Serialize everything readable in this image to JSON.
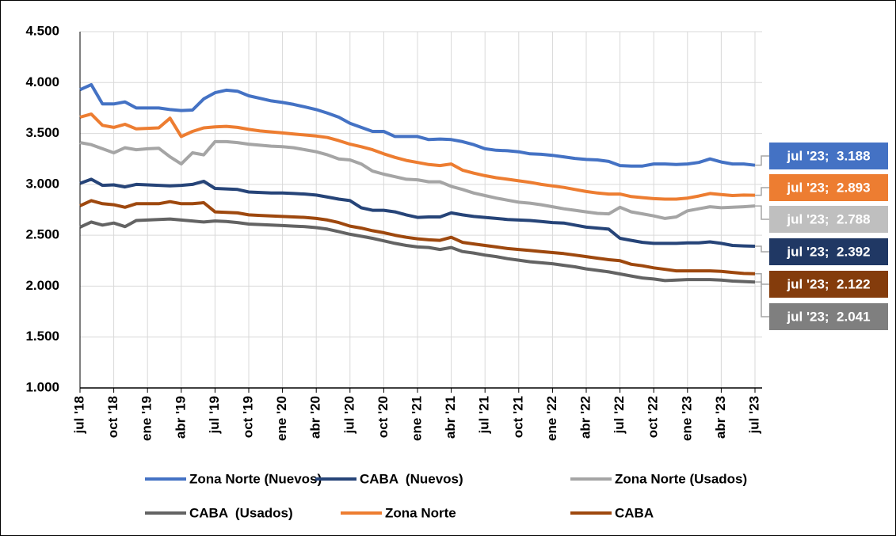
{
  "chart_data": {
    "type": "line",
    "categories": [
      "jul '18",
      null,
      null,
      "oct '18",
      null,
      null,
      "ene '19",
      null,
      null,
      "abr '19",
      null,
      null,
      "jul '19",
      null,
      null,
      "oct '19",
      null,
      null,
      "ene '20",
      null,
      null,
      "abr '20",
      null,
      null,
      "jul '20",
      null,
      null,
      "oct '20",
      null,
      null,
      "ene '21",
      null,
      null,
      "abr '21",
      null,
      null,
      "jul '21",
      null,
      null,
      "oct '21",
      null,
      null,
      "ene '22",
      null,
      null,
      "abr '22",
      null,
      null,
      "jul '22",
      null,
      null,
      "oct '22",
      null,
      null,
      "ene '23",
      null,
      null,
      "abr '23",
      null,
      null,
      "jul '23"
    ],
    "ylim": [
      1000,
      4500
    ],
    "yticks": [
      {
        "value": 1000,
        "label": "1.000"
      },
      {
        "value": 1500,
        "label": "1.500"
      },
      {
        "value": 2000,
        "label": "2.000"
      },
      {
        "value": 2500,
        "label": "2.500"
      },
      {
        "value": 3000,
        "label": "3.000"
      },
      {
        "value": 3500,
        "label": "3.500"
      },
      {
        "value": 4000,
        "label": "4.000"
      },
      {
        "value": 4500,
        "label": "4.500"
      }
    ],
    "grid": true,
    "legend": "bottom",
    "series": [
      {
        "name": "Zona Norte (Nuevos)",
        "color": "#4472c4",
        "label_color": "#4472c4",
        "values": [
          3930,
          3980,
          3790,
          3790,
          3810,
          3750,
          3750,
          3750,
          3735,
          3725,
          3730,
          3840,
          3900,
          3925,
          3915,
          3870,
          3845,
          3820,
          3805,
          3785,
          3760,
          3735,
          3700,
          3660,
          3600,
          3560,
          3520,
          3520,
          3470,
          3470,
          3470,
          3440,
          3445,
          3440,
          3420,
          3390,
          3350,
          3335,
          3330,
          3320,
          3300,
          3295,
          3285,
          3270,
          3255,
          3245,
          3240,
          3225,
          3185,
          3180,
          3180,
          3200,
          3200,
          3195,
          3200,
          3215,
          3250,
          3220,
          3200,
          3200,
          3188
        ],
        "value_labels": [
          null,
          null,
          null,
          null,
          null,
          null,
          null,
          null,
          null,
          null,
          null,
          null,
          null,
          null,
          null,
          null,
          null,
          null,
          null,
          null,
          null,
          null,
          null,
          null,
          null,
          null,
          null,
          null,
          null,
          null,
          null,
          null,
          null,
          null,
          null,
          null,
          null,
          null,
          null,
          null,
          null,
          null,
          null,
          null,
          null,
          null,
          null,
          null,
          null,
          null,
          null,
          null,
          null,
          null,
          null,
          null,
          null,
          null,
          null,
          null,
          "jul '23;  3.188"
        ]
      },
      {
        "name": "CABA  (Nuevos)",
        "color": "#264478",
        "label_color": "#203864",
        "values": [
          3010,
          3050,
          2990,
          2995,
          2975,
          3000,
          2995,
          2990,
          2985,
          2990,
          3000,
          3030,
          2960,
          2955,
          2950,
          2925,
          2920,
          2915,
          2915,
          2910,
          2905,
          2895,
          2875,
          2855,
          2840,
          2770,
          2745,
          2745,
          2730,
          2700,
          2675,
          2680,
          2680,
          2720,
          2700,
          2685,
          2675,
          2665,
          2655,
          2650,
          2645,
          2635,
          2625,
          2620,
          2600,
          2580,
          2570,
          2560,
          2470,
          2450,
          2430,
          2420,
          2420,
          2420,
          2425,
          2425,
          2435,
          2420,
          2400,
          2395,
          2392
        ],
        "value_labels": [
          null,
          null,
          null,
          null,
          null,
          null,
          null,
          null,
          null,
          null,
          null,
          null,
          null,
          null,
          null,
          null,
          null,
          null,
          null,
          null,
          null,
          null,
          null,
          null,
          null,
          null,
          null,
          null,
          null,
          null,
          null,
          null,
          null,
          null,
          null,
          null,
          null,
          null,
          null,
          null,
          null,
          null,
          null,
          null,
          null,
          null,
          null,
          null,
          null,
          null,
          null,
          null,
          null,
          null,
          null,
          null,
          null,
          null,
          null,
          null,
          "jul '23;  2.392"
        ]
      },
      {
        "name": "Zona Norte (Usados)",
        "color": "#a5a5a5",
        "label_color": "#bfbfbf",
        "values": [
          3410,
          3390,
          3350,
          3310,
          3360,
          3340,
          3350,
          3355,
          3270,
          3200,
          3310,
          3290,
          3420,
          3420,
          3410,
          3395,
          3385,
          3375,
          3370,
          3360,
          3340,
          3320,
          3290,
          3250,
          3240,
          3200,
          3130,
          3100,
          3075,
          3050,
          3045,
          3025,
          3025,
          2980,
          2950,
          2915,
          2890,
          2865,
          2845,
          2825,
          2815,
          2800,
          2780,
          2760,
          2745,
          2730,
          2715,
          2710,
          2775,
          2730,
          2710,
          2690,
          2665,
          2680,
          2740,
          2760,
          2780,
          2770,
          2775,
          2780,
          2788
        ],
        "value_labels": [
          null,
          null,
          null,
          null,
          null,
          null,
          null,
          null,
          null,
          null,
          null,
          null,
          null,
          null,
          null,
          null,
          null,
          null,
          null,
          null,
          null,
          null,
          null,
          null,
          null,
          null,
          null,
          null,
          null,
          null,
          null,
          null,
          null,
          null,
          null,
          null,
          null,
          null,
          null,
          null,
          null,
          null,
          null,
          null,
          null,
          null,
          null,
          null,
          null,
          null,
          null,
          null,
          null,
          null,
          null,
          null,
          null,
          null,
          null,
          null,
          "jul '23;  2.788"
        ]
      },
      {
        "name": "CABA  (Usados)",
        "color": "#636363",
        "label_color": "#7f7f7f",
        "values": [
          2580,
          2630,
          2600,
          2620,
          2585,
          2645,
          2650,
          2655,
          2660,
          2650,
          2640,
          2630,
          2640,
          2635,
          2625,
          2610,
          2605,
          2600,
          2595,
          2590,
          2585,
          2575,
          2560,
          2535,
          2510,
          2490,
          2470,
          2445,
          2420,
          2400,
          2385,
          2380,
          2360,
          2380,
          2340,
          2325,
          2305,
          2290,
          2270,
          2255,
          2240,
          2230,
          2220,
          2205,
          2190,
          2170,
          2155,
          2140,
          2120,
          2100,
          2080,
          2070,
          2055,
          2060,
          2065,
          2065,
          2065,
          2060,
          2050,
          2045,
          2041
        ],
        "value_labels": [
          null,
          null,
          null,
          null,
          null,
          null,
          null,
          null,
          null,
          null,
          null,
          null,
          null,
          null,
          null,
          null,
          null,
          null,
          null,
          null,
          null,
          null,
          null,
          null,
          null,
          null,
          null,
          null,
          null,
          null,
          null,
          null,
          null,
          null,
          null,
          null,
          null,
          null,
          null,
          null,
          null,
          null,
          null,
          null,
          null,
          null,
          null,
          null,
          null,
          null,
          null,
          null,
          null,
          null,
          null,
          null,
          null,
          null,
          null,
          null,
          "jul '23;  2.041"
        ]
      },
      {
        "name": "Zona Norte",
        "color": "#ed7d31",
        "label_color": "#ed7d31",
        "values": [
          3660,
          3690,
          3580,
          3560,
          3590,
          3545,
          3550,
          3555,
          3650,
          3470,
          3520,
          3555,
          3565,
          3570,
          3560,
          3540,
          3525,
          3515,
          3505,
          3495,
          3485,
          3475,
          3460,
          3430,
          3395,
          3370,
          3340,
          3300,
          3265,
          3235,
          3215,
          3195,
          3185,
          3200,
          3140,
          3110,
          3085,
          3065,
          3050,
          3035,
          3020,
          3000,
          2985,
          2970,
          2950,
          2930,
          2915,
          2905,
          2905,
          2880,
          2870,
          2860,
          2855,
          2855,
          2865,
          2885,
          2910,
          2900,
          2890,
          2895,
          2893
        ],
        "value_labels": [
          null,
          null,
          null,
          null,
          null,
          null,
          null,
          null,
          null,
          null,
          null,
          null,
          null,
          null,
          null,
          null,
          null,
          null,
          null,
          null,
          null,
          null,
          null,
          null,
          null,
          null,
          null,
          null,
          null,
          null,
          null,
          null,
          null,
          null,
          null,
          null,
          null,
          null,
          null,
          null,
          null,
          null,
          null,
          null,
          null,
          null,
          null,
          null,
          null,
          null,
          null,
          null,
          null,
          null,
          null,
          null,
          null,
          null,
          null,
          null,
          "jul '23;  2.893"
        ]
      },
      {
        "name": "CABA",
        "color": "#9e480e",
        "label_color": "#843c0c",
        "values": [
          2790,
          2840,
          2810,
          2800,
          2775,
          2810,
          2810,
          2810,
          2830,
          2810,
          2810,
          2820,
          2730,
          2725,
          2720,
          2700,
          2695,
          2690,
          2685,
          2680,
          2675,
          2665,
          2650,
          2625,
          2590,
          2570,
          2545,
          2525,
          2500,
          2480,
          2465,
          2455,
          2450,
          2480,
          2430,
          2415,
          2400,
          2385,
          2370,
          2360,
          2350,
          2340,
          2330,
          2320,
          2305,
          2290,
          2275,
          2260,
          2250,
          2215,
          2200,
          2180,
          2165,
          2150,
          2150,
          2150,
          2150,
          2145,
          2135,
          2125,
          2122
        ],
        "value_labels": [
          null,
          null,
          null,
          null,
          null,
          null,
          null,
          null,
          null,
          null,
          null,
          null,
          null,
          null,
          null,
          null,
          null,
          null,
          null,
          null,
          null,
          null,
          null,
          null,
          null,
          null,
          null,
          null,
          null,
          null,
          null,
          null,
          null,
          null,
          null,
          null,
          null,
          null,
          null,
          null,
          null,
          null,
          null,
          null,
          null,
          null,
          null,
          null,
          null,
          null,
          null,
          null,
          null,
          null,
          null,
          null,
          null,
          null,
          null,
          null,
          "jul '23;  2.122"
        ]
      }
    ]
  }
}
